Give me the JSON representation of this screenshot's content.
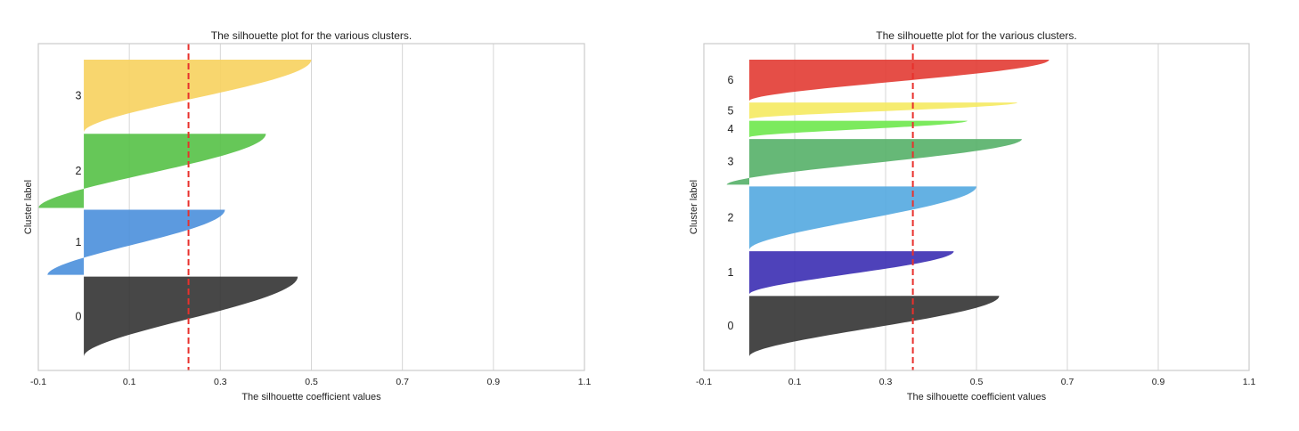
{
  "chart_data": [
    {
      "type": "area",
      "title": "The silhouette plot for the various clusters.",
      "xlabel": "The silhouette coefficient values",
      "ylabel": "Cluster label",
      "xticks": [
        "-0.1",
        "0.1",
        "0.3",
        "0.5",
        "0.7",
        "0.9",
        "1.1"
      ],
      "xlim": [
        -0.1,
        1.1
      ],
      "grid": true,
      "average_silhouette": 0.23,
      "average_line_color": "#e8302c",
      "clusters": [
        {
          "label": "0",
          "size": 88,
          "min": 0.0,
          "max": 0.47,
          "color": "#333333"
        },
        {
          "label": "1",
          "size": 72,
          "min": -0.08,
          "max": 0.31,
          "color": "#4a8fdc"
        },
        {
          "label": "2",
          "size": 82,
          "min": -0.1,
          "max": 0.4,
          "color": "#55c146"
        },
        {
          "label": "3",
          "size": 80,
          "min": 0.0,
          "max": 0.5,
          "color": "#f7d15e"
        }
      ]
    },
    {
      "type": "area",
      "title": "The silhouette plot for the various clusters.",
      "xlabel": "The silhouette coefficient values",
      "ylabel": "Cluster label",
      "xticks": [
        "-0.1",
        "0.1",
        "0.3",
        "0.5",
        "0.7",
        "0.9",
        "1.1"
      ],
      "xlim": [
        -0.1,
        1.1
      ],
      "grid": true,
      "average_silhouette": 0.36,
      "average_line_color": "#e8302c",
      "clusters": [
        {
          "label": "0",
          "size": 66,
          "min": 0.0,
          "max": 0.55,
          "color": "#333333"
        },
        {
          "label": "1",
          "size": 47,
          "min": 0.0,
          "max": 0.45,
          "color": "#3b2db3"
        },
        {
          "label": "2",
          "size": 69,
          "min": 0.0,
          "max": 0.5,
          "color": "#53a8e0"
        },
        {
          "label": "3",
          "size": 50,
          "min": -0.05,
          "max": 0.6,
          "color": "#55b068"
        },
        {
          "label": "4",
          "size": 18,
          "min": 0.0,
          "max": 0.48,
          "color": "#6ee84c"
        },
        {
          "label": "5",
          "size": 18,
          "min": 0.0,
          "max": 0.59,
          "color": "#f5ea60"
        },
        {
          "label": "6",
          "size": 45,
          "min": 0.0,
          "max": 0.66,
          "color": "#e23b33"
        }
      ]
    }
  ]
}
